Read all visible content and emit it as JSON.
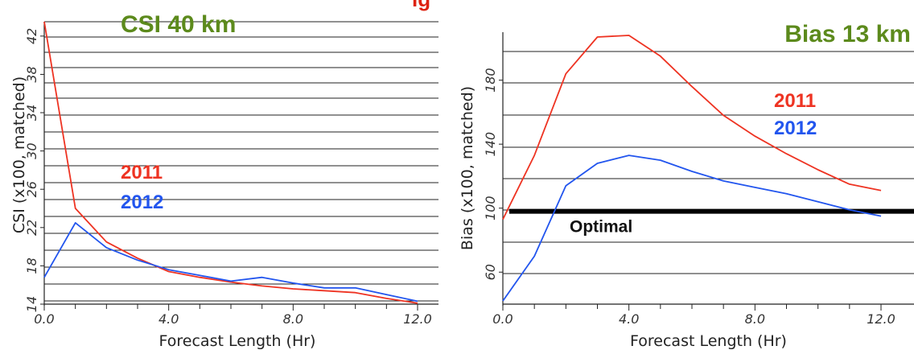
{
  "header_fragment": "ig",
  "colors": {
    "title": "#5c8a1c",
    "red": "#ee3322",
    "blue": "#2255ee",
    "optimal": "#000000",
    "grid": "#222222"
  },
  "chart_data": [
    {
      "type": "line",
      "title": "CSI 40 km",
      "xlabel": "Forecast Length (Hr)",
      "ylabel": "CSI (x100, matched)",
      "xlim": [
        0,
        12
      ],
      "ylim": [
        14,
        43.5
      ],
      "xticks": [
        "0.0",
        "4.0",
        "8.0",
        "12.0"
      ],
      "yticks": [
        "14",
        "18",
        "22",
        "26",
        "30",
        "34",
        "38",
        "42"
      ],
      "grid": true,
      "series": [
        {
          "name": "2011",
          "color": "#ee3322",
          "x": [
            0,
            1,
            2,
            3,
            4,
            5,
            6,
            7,
            8,
            9,
            10,
            11,
            12
          ],
          "values": [
            43.5,
            24.0,
            20.5,
            18.8,
            17.4,
            16.8,
            16.3,
            15.9,
            15.6,
            15.4,
            15.2,
            14.6,
            14.1
          ]
        },
        {
          "name": "2012",
          "color": "#2255ee",
          "x": [
            0,
            1,
            2,
            3,
            4,
            5,
            6,
            7,
            8,
            9,
            10,
            11,
            12
          ],
          "values": [
            16.8,
            22.5,
            19.9,
            18.6,
            17.6,
            17.0,
            16.4,
            16.8,
            16.2,
            15.7,
            15.7,
            15.0,
            14.3
          ]
        }
      ],
      "annotations": []
    },
    {
      "type": "line",
      "title": "Bias 13 km",
      "xlabel": "Forecast Length (Hr)",
      "ylabel": "Bias (x100, matched)",
      "xlim": [
        0,
        12
      ],
      "ylim": [
        40,
        210
      ],
      "xticks": [
        "0.0",
        "4.0",
        "8.0",
        "12.0"
      ],
      "yticks": [
        "60",
        "100",
        "140",
        "180"
      ],
      "grid": true,
      "series": [
        {
          "name": "2011",
          "color": "#ee3322",
          "x": [
            0,
            1,
            2,
            3,
            4,
            5,
            6,
            7,
            8,
            9,
            10,
            11,
            12
          ],
          "values": [
            93,
            133,
            184,
            207,
            208,
            195,
            176,
            158,
            145,
            134,
            124,
            115,
            111
          ]
        },
        {
          "name": "2012",
          "color": "#2255ee",
          "x": [
            0,
            1,
            2,
            3,
            4,
            5,
            6,
            7,
            8,
            9,
            10,
            11,
            12
          ],
          "values": [
            42,
            70,
            114,
            128,
            133,
            130,
            123,
            117,
            113,
            109,
            104,
            99,
            95
          ]
        }
      ],
      "annotations": [
        {
          "label": "Optimal",
          "y": 98
        }
      ]
    }
  ]
}
